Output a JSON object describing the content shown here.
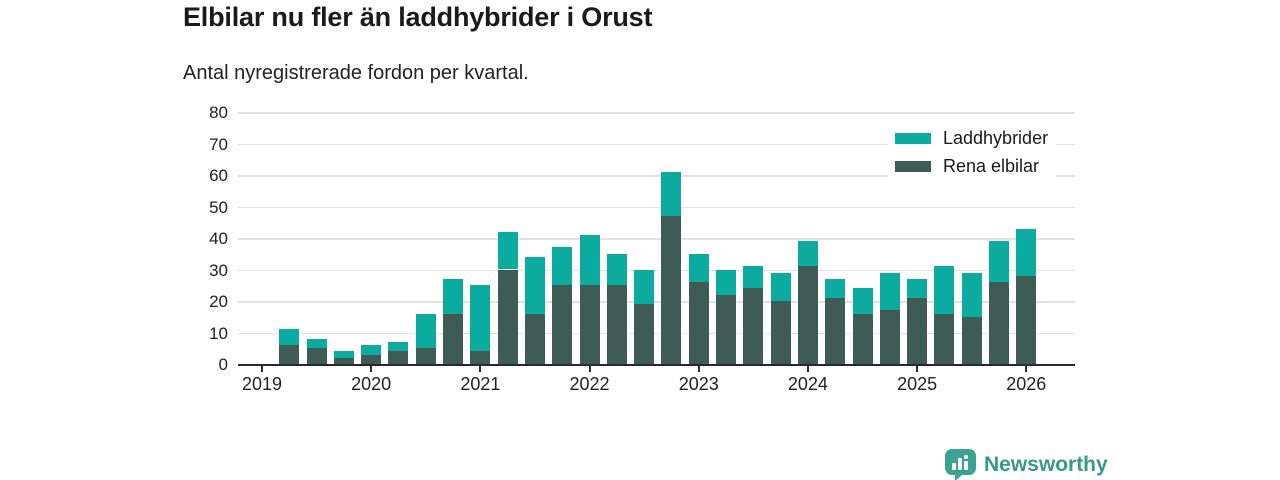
{
  "title": "Elbilar nu fler än laddhybrider i Orust",
  "subtitle": "Antal nyregistrerade fordon per kvartal.",
  "colors": {
    "laddhybrider": "#0cab9f",
    "rena_elbilar": "#3e5b54",
    "grid": "#e2e2e2",
    "axis": "#2b2b2b",
    "text": "#222222",
    "logo": "#3ba390",
    "logo_text": "#35998b"
  },
  "legend": {
    "items": [
      {
        "label": "Laddhybrider",
        "color": "#0cab9f"
      },
      {
        "label": "Rena elbilar",
        "color": "#3e5b54"
      }
    ]
  },
  "logo": {
    "text": "Newsworthy"
  },
  "chart_data": {
    "type": "bar",
    "stacked": true,
    "title": "Elbilar nu fler än laddhybrider i Orust",
    "subtitle": "Antal nyregistrerade fordon per kvartal.",
    "x": [
      "2019 Q1",
      "2019 Q2",
      "2019 Q3",
      "2019 Q4",
      "2020 Q1",
      "2020 Q2",
      "2020 Q3",
      "2020 Q4",
      "2021 Q1",
      "2021 Q2",
      "2021 Q3",
      "2021 Q4",
      "2022 Q1",
      "2022 Q2",
      "2022 Q3",
      "2022 Q4",
      "2023 Q1",
      "2023 Q2",
      "2023 Q3",
      "2023 Q4",
      "2024 Q1",
      "2024 Q2",
      "2024 Q3",
      "2024 Q4",
      "2025 Q1",
      "2025 Q2",
      "2025 Q3",
      "2025 Q4",
      "2026 Q1"
    ],
    "series": [
      {
        "name": "Rena elbilar",
        "color": "#3e5b54",
        "values": [
          0,
          6,
          5,
          2,
          3,
          4,
          5,
          16,
          4,
          30,
          16,
          25,
          25,
          25,
          19,
          47,
          26,
          22,
          24,
          20,
          31,
          21,
          16,
          17,
          21,
          16,
          15,
          26,
          28
        ]
      },
      {
        "name": "Laddhybrider",
        "color": "#0cab9f",
        "values": [
          0,
          5,
          3,
          2,
          3,
          3,
          11,
          11,
          21,
          12,
          18,
          12,
          16,
          10,
          11,
          14,
          9,
          8,
          7,
          9,
          8,
          6,
          8,
          12,
          6,
          15,
          14,
          13,
          15
        ]
      }
    ],
    "totals": [
      0,
      11,
      8,
      4,
      6,
      7,
      16,
      27,
      25,
      42,
      34,
      37,
      41,
      35,
      30,
      61,
      35,
      30,
      31,
      29,
      39,
      27,
      24,
      29,
      27,
      31,
      29,
      39,
      43
    ],
    "ylim": [
      0,
      80
    ],
    "yticks": [
      0,
      10,
      20,
      30,
      40,
      50,
      60,
      70,
      80
    ],
    "xticks": [
      "2019",
      "2020",
      "2021",
      "2022",
      "2023",
      "2024",
      "2025",
      "2026"
    ],
    "grid": true,
    "legend_position": "top-right"
  }
}
